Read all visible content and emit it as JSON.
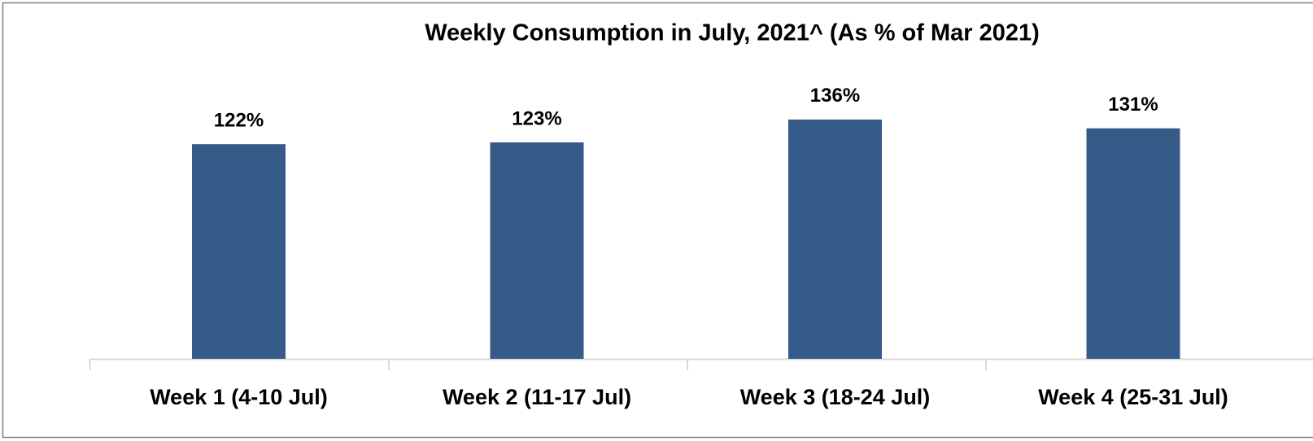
{
  "chart_data": {
    "type": "bar",
    "title": "Weekly Consumption in July, 2021^ (As % of Mar 2021)",
    "categories": [
      "Week 1 (4-10 Jul)",
      "Week 2 (11-17 Jul)",
      "Week 3 (18-24 Jul)",
      "Week 4 (25-31 Jul)"
    ],
    "values": [
      122,
      123,
      136,
      131
    ],
    "value_labels": [
      "122%",
      "123%",
      "136%",
      "131%"
    ],
    "color": "#365b88",
    "ylim": [
      0,
      160
    ]
  }
}
